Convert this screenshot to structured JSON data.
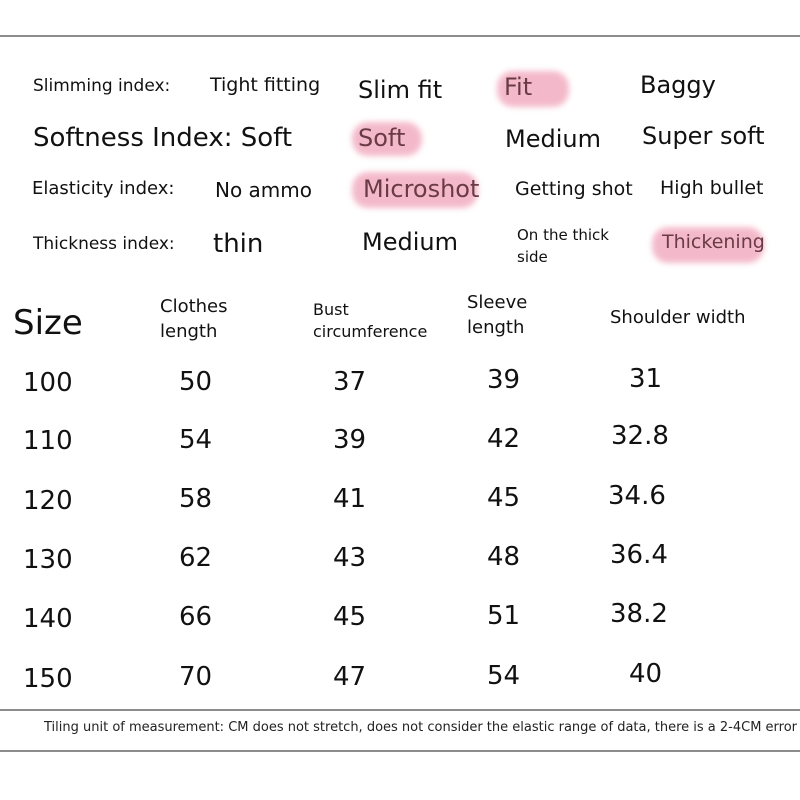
{
  "indices": [
    {
      "label": "Slimming index:",
      "options": [
        "Tight fitting",
        "Slim fit",
        "Fit",
        "Baggy"
      ],
      "selected": "Fit"
    },
    {
      "label": "Softness Index: Soft",
      "options": [
        "Soft",
        "Medium",
        "Super soft"
      ],
      "selected": "Soft"
    },
    {
      "label": "Elasticity index:",
      "options": [
        "No ammo",
        "Microshot",
        "Getting shot",
        "High bullet"
      ],
      "selected": "Microshot"
    },
    {
      "label": "Thickness index:",
      "options": [
        "thin",
        "Medium",
        "On the thick side",
        "Thickening"
      ],
      "selected": "Thickening"
    }
  ],
  "size_table": {
    "header": {
      "size": "Size",
      "clothes_length": [
        "Clothes",
        "length"
      ],
      "bust": [
        "Bust",
        "circumference"
      ],
      "sleeve": [
        "Sleeve",
        "length"
      ],
      "shoulder": "Shoulder width"
    },
    "rows": [
      [
        "100",
        "50",
        "37",
        "39",
        "31"
      ],
      [
        "110",
        "54",
        "39",
        "42",
        "32.8"
      ],
      [
        "120",
        "58",
        "41",
        "45",
        "34.6"
      ],
      [
        "130",
        "62",
        "43",
        "48",
        "36.4"
      ],
      [
        "140",
        "66",
        "45",
        "51",
        "38.2"
      ],
      [
        "150",
        "70",
        "47",
        "54",
        "40"
      ]
    ]
  },
  "footer_note": "Tiling unit of measurement: CM does not stretch, does not consider the elastic range of data, there is a 2-4CM error",
  "colors": {
    "highlight": "#f3b6c8",
    "rule": "#8c8c8c"
  }
}
